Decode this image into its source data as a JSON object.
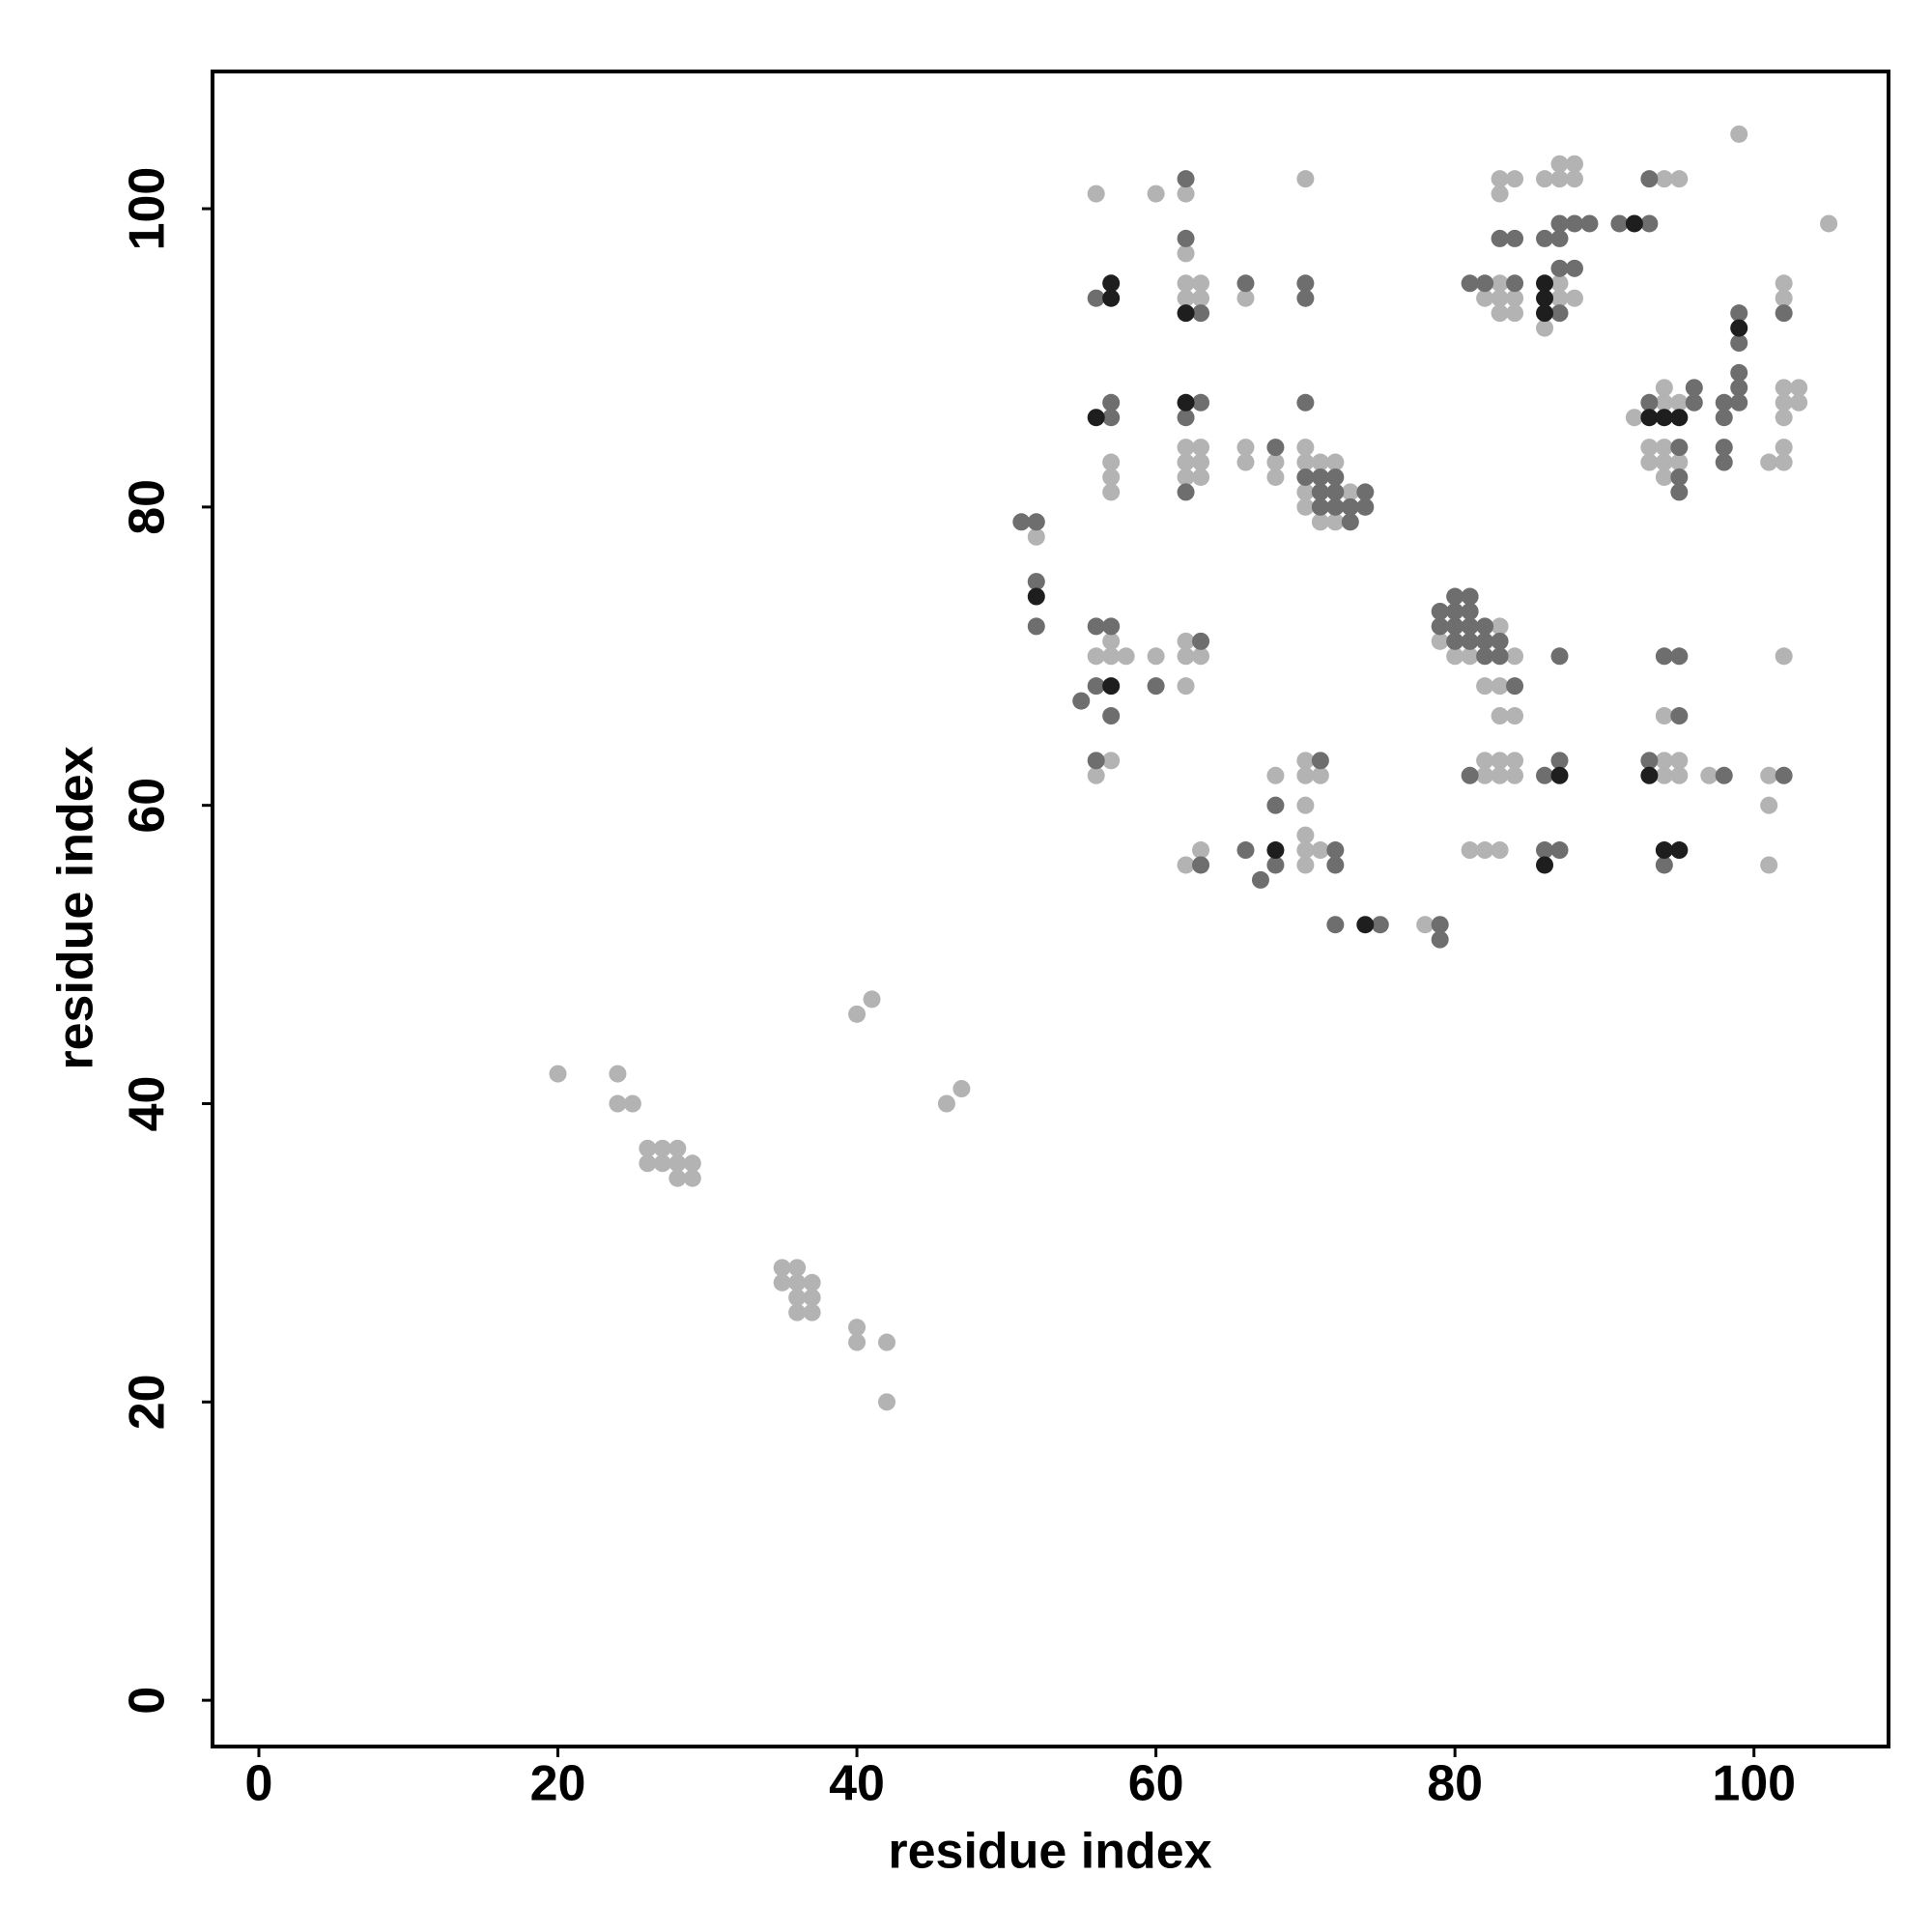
{
  "chart_data": {
    "type": "scatter",
    "xlabel": "residue index",
    "ylabel": "residue index",
    "xlim": [
      -3.1,
      109.0
    ],
    "ylim": [
      -3.1,
      109.2
    ],
    "xticks": [
      0,
      20,
      40,
      60,
      80,
      100
    ],
    "yticks": [
      0,
      20,
      40,
      60,
      80,
      100
    ],
    "grid": false,
    "series": [
      {
        "color": "#b3b3b3",
        "x": [
          20,
          24,
          24,
          25,
          26,
          27,
          28,
          26,
          27,
          28,
          29,
          28,
          29,
          35,
          36,
          35,
          36,
          37,
          36,
          37,
          36,
          37,
          40,
          40,
          42,
          42,
          40,
          41,
          46,
          47,
          52,
          56,
          56,
          56,
          57,
          57,
          57,
          57,
          57,
          57,
          58,
          60,
          60,
          62,
          62,
          62,
          62,
          62,
          62,
          62,
          62,
          62,
          62,
          62,
          63,
          63,
          63,
          63,
          63,
          63,
          63,
          66,
          66,
          66,
          68,
          68,
          68,
          70,
          70,
          70,
          70,
          70,
          70,
          70,
          70,
          70,
          70,
          70,
          71,
          71,
          71,
          71,
          72,
          72,
          73,
          78,
          79,
          80,
          81,
          81,
          82,
          82,
          82,
          82,
          82,
          83,
          83,
          83,
          83,
          83,
          83,
          83,
          83,
          83,
          83,
          83,
          84,
          84,
          84,
          84,
          84,
          84,
          84,
          86,
          86,
          87,
          87,
          87,
          87,
          88,
          88,
          88,
          92,
          93,
          93,
          94,
          94,
          94,
          94,
          94,
          94,
          94,
          94,
          94,
          95,
          95,
          95,
          95,
          95,
          97,
          99,
          101,
          101,
          101,
          101,
          102,
          102,
          102,
          102,
          102,
          102,
          102,
          102,
          103,
          103,
          105
        ],
        "y": [
          42,
          42,
          40,
          40,
          37,
          37,
          37,
          36,
          36,
          36,
          36,
          35,
          35,
          29,
          29,
          28,
          28,
          28,
          27,
          27,
          26,
          26,
          25,
          24,
          24,
          20,
          46,
          47,
          40,
          41,
          78,
          101,
          70,
          62,
          83,
          82,
          81,
          71,
          70,
          63,
          70,
          101,
          70,
          101,
          97,
          95,
          94,
          84,
          83,
          82,
          71,
          70,
          68,
          56,
          95,
          94,
          84,
          83,
          82,
          70,
          57,
          94,
          84,
          83,
          83,
          82,
          62,
          102,
          84,
          83,
          81,
          80,
          63,
          62,
          60,
          58,
          57,
          56,
          83,
          79,
          62,
          57,
          83,
          79,
          81,
          52,
          71,
          70,
          70,
          57,
          94,
          68,
          63,
          62,
          57,
          102,
          101,
          95,
          94,
          93,
          72,
          68,
          66,
          63,
          62,
          57,
          102,
          94,
          93,
          70,
          66,
          63,
          62,
          102,
          92,
          103,
          102,
          95,
          94,
          103,
          102,
          94,
          86,
          84,
          83,
          102,
          88,
          87,
          84,
          83,
          82,
          66,
          63,
          62,
          102,
          87,
          83,
          63,
          62,
          62,
          105,
          83,
          62,
          60,
          56,
          95,
          94,
          88,
          87,
          86,
          84,
          83,
          70,
          88,
          87,
          99
        ]
      },
      {
        "color": "#6e6e6e",
        "x": [
          51,
          52,
          52,
          52,
          55,
          56,
          56,
          56,
          56,
          57,
          57,
          57,
          57,
          60,
          62,
          62,
          62,
          62,
          63,
          63,
          63,
          63,
          66,
          66,
          67,
          68,
          68,
          68,
          70,
          70,
          70,
          70,
          71,
          71,
          71,
          71,
          72,
          72,
          72,
          72,
          72,
          72,
          73,
          73,
          74,
          74,
          75,
          79,
          79,
          79,
          79,
          80,
          80,
          80,
          80,
          81,
          81,
          81,
          81,
          81,
          81,
          82,
          82,
          82,
          82,
          83,
          83,
          83,
          84,
          84,
          84,
          86,
          86,
          86,
          87,
          87,
          87,
          87,
          87,
          87,
          87,
          88,
          88,
          89,
          91,
          93,
          93,
          93,
          93,
          94,
          94,
          95,
          95,
          95,
          95,
          95,
          96,
          96,
          98,
          98,
          98,
          98,
          98,
          99,
          99,
          99,
          99,
          99,
          102,
          102
        ],
        "y": [
          79,
          79,
          75,
          72,
          67,
          94,
          72,
          68,
          63,
          87,
          86,
          72,
          66,
          68,
          102,
          98,
          86,
          81,
          93,
          87,
          71,
          56,
          95,
          57,
          55,
          84,
          60,
          56,
          95,
          94,
          87,
          82,
          82,
          81,
          80,
          63,
          82,
          81,
          80,
          57,
          56,
          52,
          80,
          79,
          81,
          80,
          52,
          52,
          51,
          73,
          72,
          74,
          73,
          72,
          71,
          95,
          74,
          73,
          72,
          71,
          62,
          95,
          72,
          71,
          70,
          98,
          71,
          70,
          98,
          95,
          68,
          98,
          62,
          57,
          99,
          98,
          96,
          93,
          70,
          63,
          57,
          99,
          96,
          99,
          99,
          102,
          99,
          87,
          63,
          70,
          56,
          84,
          82,
          81,
          70,
          66,
          88,
          87,
          87,
          86,
          84,
          83,
          62,
          93,
          91,
          89,
          88,
          87,
          93,
          62
        ]
      },
      {
        "color": "#1e1e1e",
        "x": [
          52,
          56,
          57,
          57,
          57,
          62,
          62,
          68,
          74,
          86,
          86,
          86,
          86,
          87,
          92,
          93,
          93,
          94,
          94,
          95,
          95,
          99
        ],
        "y": [
          74,
          86,
          95,
          94,
          68,
          93,
          87,
          57,
          52,
          95,
          94,
          93,
          56,
          62,
          99,
          86,
          62,
          86,
          57,
          86,
          57,
          92
        ]
      }
    ]
  }
}
